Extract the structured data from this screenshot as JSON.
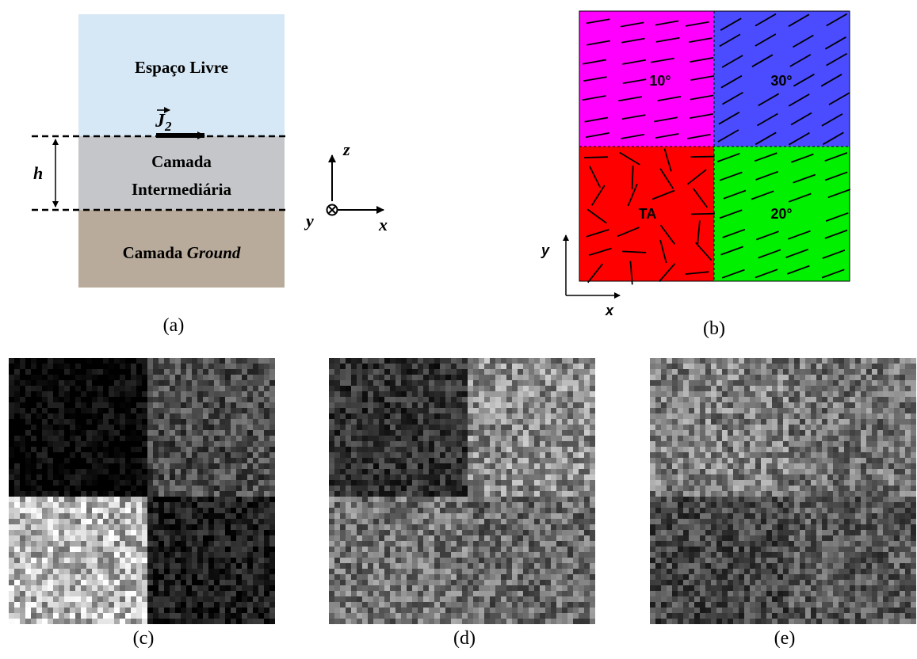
{
  "panel_a": {
    "layer_top": "Espaço Livre",
    "current_symbol": "J",
    "current_subscript": "2",
    "layer_middle_line1": "Camada",
    "layer_middle_line2": "Intermediária",
    "layer_bottom_prefix": "Camada ",
    "layer_bottom_italic": "Ground",
    "dimension_label": "h",
    "axis_z": "z",
    "axis_y": "y",
    "axis_x": "x",
    "caption": "(a)",
    "colors": {
      "free_space": "#d6e8f6",
      "intermediate": "#c4c6c9",
      "ground": "#b9ab9b"
    }
  },
  "panel_b": {
    "quadrants": {
      "top_left": {
        "label": "10°",
        "color": "#ff00ff",
        "angle_deg": 10
      },
      "top_right": {
        "label": "30°",
        "color": "#4b4bff",
        "angle_deg": 30
      },
      "bottom_left": {
        "label": "TA",
        "color": "#ff0000",
        "angle_deg": null
      },
      "bottom_right": {
        "label": "20°",
        "color": "#00f000",
        "angle_deg": 20
      }
    },
    "axis_y": "y",
    "axis_x": "x",
    "caption": "(b)"
  },
  "images": {
    "c": {
      "caption": "(c)",
      "brightness": {
        "top_left": 0.03,
        "top_right": 0.3,
        "bottom_left": 0.72,
        "bottom_right": 0.12
      }
    },
    "d": {
      "caption": "(d)",
      "brightness": {
        "top_left": 0.2,
        "top_right": 0.55,
        "bottom_left": 0.45,
        "bottom_right": 0.42
      }
    },
    "e": {
      "caption": "(e)",
      "brightness": {
        "top_left": 0.5,
        "top_right": 0.45,
        "bottom_left": 0.28,
        "bottom_right": 0.35
      }
    }
  }
}
